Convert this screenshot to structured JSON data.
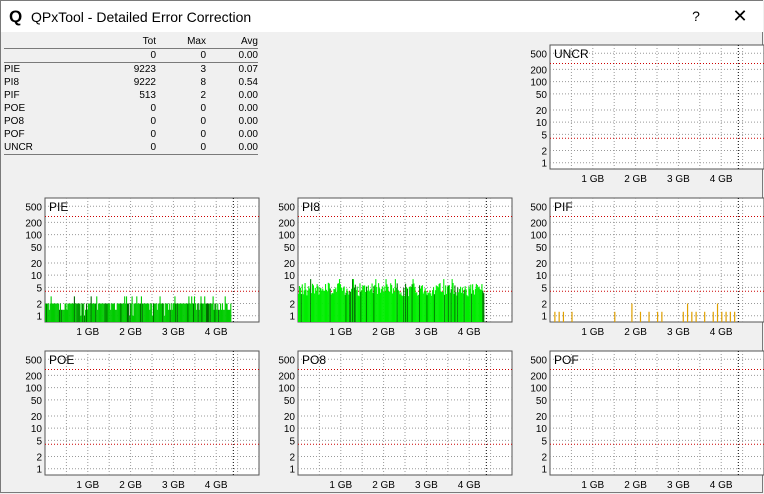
{
  "window": {
    "title": "QPxTool - Detailed Error Correction",
    "icon": "Q",
    "help_label": "?",
    "close_label": "✕"
  },
  "stats": {
    "headers": [
      "Tot",
      "Max",
      "Avg"
    ],
    "rows": [
      {
        "label": "",
        "tot": "0",
        "max": "0",
        "avg": "0.00"
      },
      {
        "label": "PIE",
        "tot": "9223",
        "max": "3",
        "avg": "0.07"
      },
      {
        "label": "PI8",
        "tot": "9222",
        "max": "8",
        "avg": "0.54"
      },
      {
        "label": "PIF",
        "tot": "513",
        "max": "2",
        "avg": "0.00"
      },
      {
        "label": "POE",
        "tot": "0",
        "max": "0",
        "avg": "0.00"
      },
      {
        "label": "PO8",
        "tot": "0",
        "max": "0",
        "avg": "0.00"
      },
      {
        "label": "POF",
        "tot": "0",
        "max": "0",
        "avg": "0.00"
      },
      {
        "label": "UNCR",
        "tot": "0",
        "max": "0",
        "avg": "0.00"
      }
    ]
  },
  "chart_data": [
    {
      "id": "uncr",
      "type": "bar",
      "title": "UNCR",
      "color": "#000000",
      "yticks": [
        1,
        2,
        5,
        10,
        20,
        50,
        100,
        200,
        500
      ],
      "xticks": [
        "1 GB",
        "2 GB",
        "3 GB",
        "4 GB"
      ],
      "yscale": "log",
      "xlim": [
        0,
        5
      ],
      "data_extent_gb": 0,
      "values": []
    },
    {
      "id": "pie",
      "type": "bar",
      "title": "PIE",
      "color": "#00cc00",
      "dark_color": "#006600",
      "yticks": [
        1,
        2,
        5,
        10,
        20,
        50,
        100,
        200,
        500
      ],
      "xticks": [
        "1 GB",
        "2 GB",
        "3 GB",
        "4 GB"
      ],
      "yscale": "log",
      "xlim": [
        0,
        5
      ],
      "data_extent_gb": 4.35,
      "max": 3,
      "typical": 2
    },
    {
      "id": "pi8",
      "type": "bar",
      "title": "PI8",
      "color": "#00ee00",
      "dark_color": "#007700",
      "yticks": [
        1,
        2,
        5,
        10,
        20,
        50,
        100,
        200,
        500
      ],
      "xticks": [
        "1 GB",
        "2 GB",
        "3 GB",
        "4 GB"
      ],
      "yscale": "log",
      "xlim": [
        0,
        5
      ],
      "data_extent_gb": 4.35,
      "max": 8,
      "typical": 5
    },
    {
      "id": "pif",
      "type": "bar",
      "title": "PIF",
      "color": "#e0a000",
      "yticks": [
        1,
        2,
        5,
        10,
        20,
        50,
        100,
        200,
        500
      ],
      "xticks": [
        "1 GB",
        "2 GB",
        "3 GB",
        "4 GB"
      ],
      "yscale": "log",
      "xlim": [
        0,
        5
      ],
      "data_extent_gb": 4.35,
      "max": 2,
      "spikes_gb": [
        0.1,
        0.2,
        0.3,
        0.5,
        1.5,
        1.9,
        2.1,
        2.3,
        2.5,
        2.6,
        3.1,
        3.2,
        3.3,
        3.4,
        3.6,
        3.8,
        3.9,
        4.0,
        4.1,
        4.2,
        4.3
      ],
      "spike_vals": [
        1,
        1,
        1,
        1,
        1,
        2,
        1,
        1,
        1,
        1,
        1,
        2,
        1,
        1,
        1,
        1,
        2,
        1,
        1,
        1,
        1
      ]
    },
    {
      "id": "poe",
      "type": "bar",
      "title": "POE",
      "color": "#000000",
      "yticks": [
        1,
        2,
        5,
        10,
        20,
        50,
        100,
        200,
        500
      ],
      "xticks": [
        "1 GB",
        "2 GB",
        "3 GB",
        "4 GB"
      ],
      "yscale": "log",
      "xlim": [
        0,
        5
      ],
      "data_extent_gb": 0,
      "values": []
    },
    {
      "id": "po8",
      "type": "bar",
      "title": "PO8",
      "color": "#000000",
      "yticks": [
        1,
        2,
        5,
        10,
        20,
        50,
        100,
        200,
        500
      ],
      "xticks": [
        "1 GB",
        "2 GB",
        "3 GB",
        "4 GB"
      ],
      "yscale": "log",
      "xlim": [
        0,
        5
      ],
      "data_extent_gb": 0,
      "values": []
    },
    {
      "id": "pof",
      "type": "bar",
      "title": "POF",
      "color": "#000000",
      "yticks": [
        1,
        2,
        5,
        10,
        20,
        50,
        100,
        200,
        500
      ],
      "xticks": [
        "1 GB",
        "2 GB",
        "3 GB",
        "4 GB"
      ],
      "yscale": "log",
      "xlim": [
        0,
        5
      ],
      "data_extent_gb": 0,
      "values": []
    }
  ]
}
